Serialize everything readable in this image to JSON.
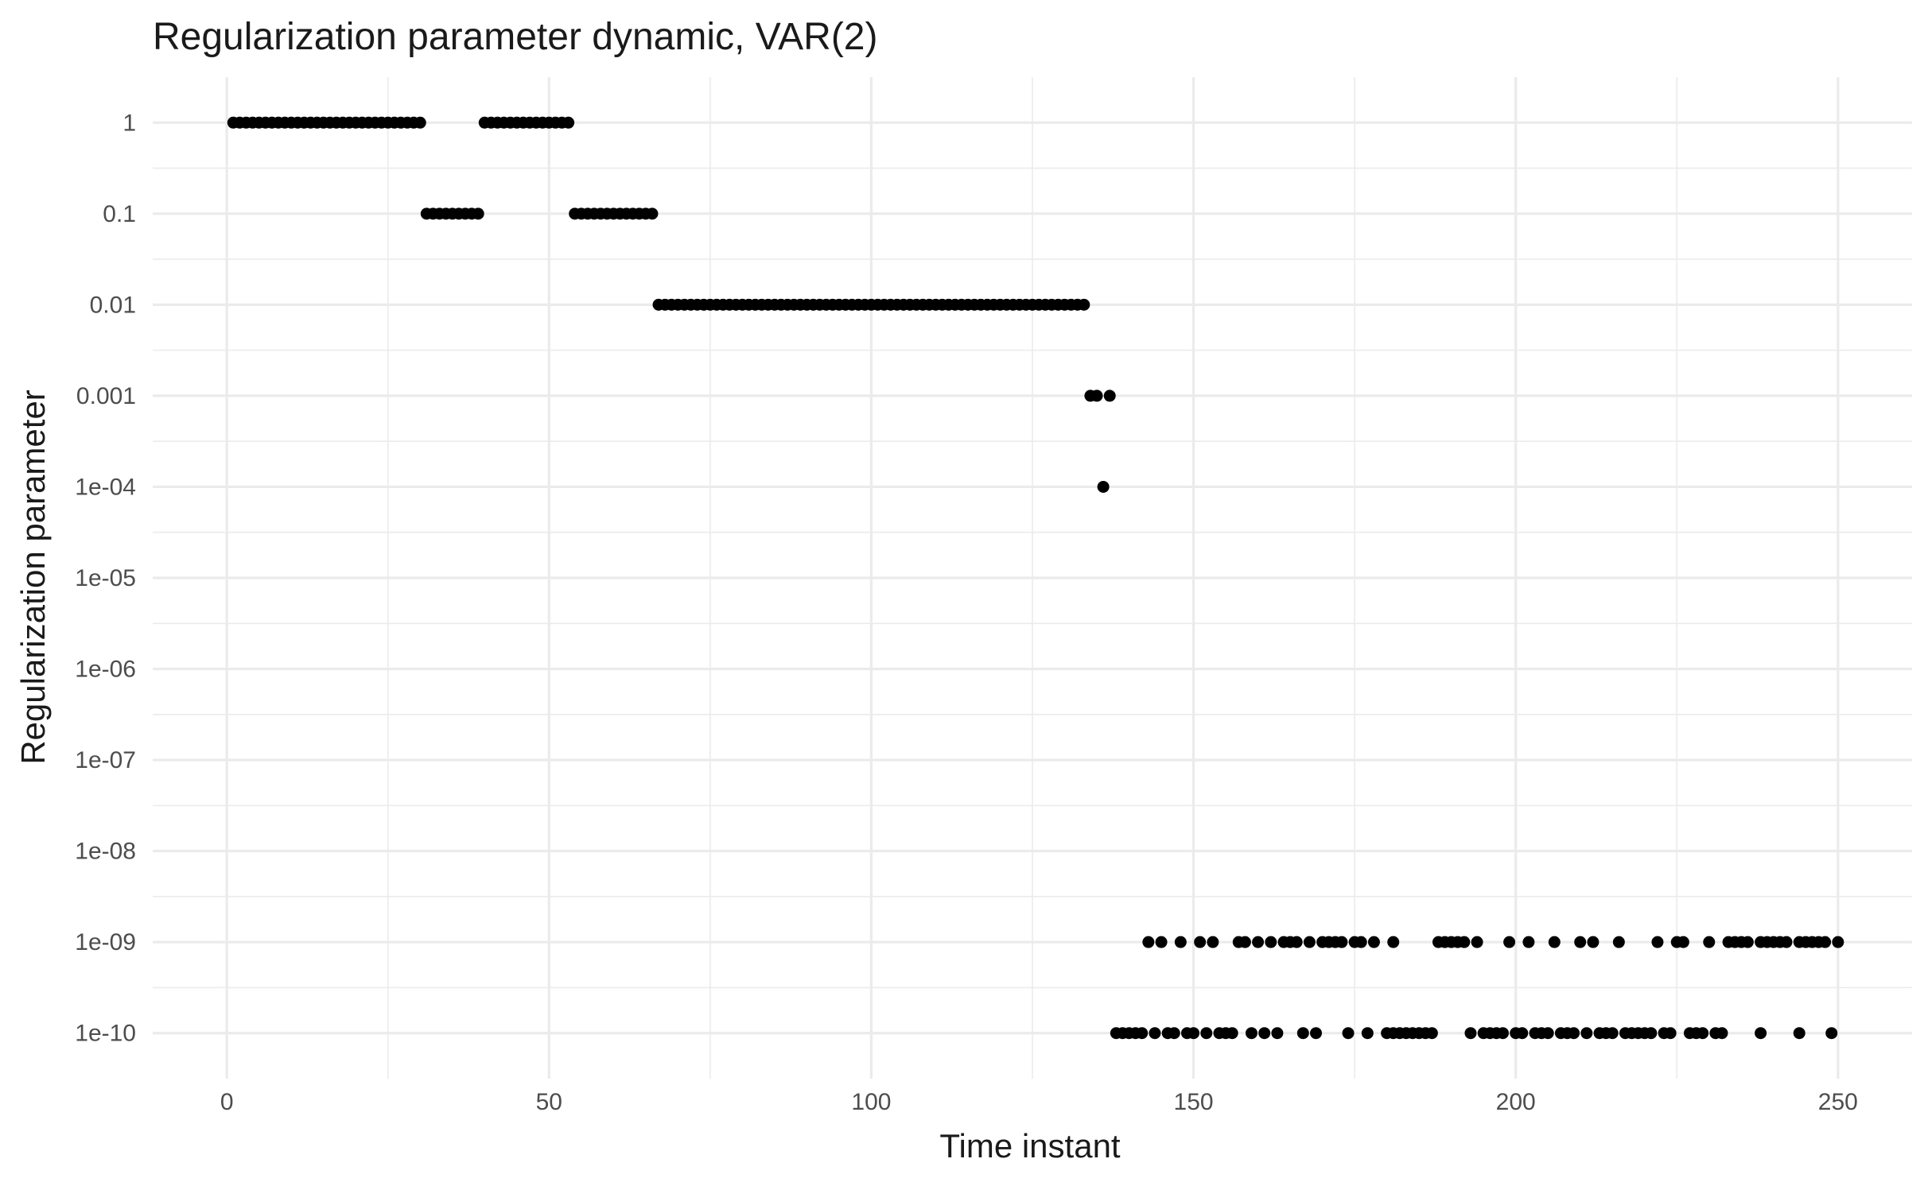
{
  "chart_data": {
    "type": "scatter",
    "title": "Regularization parameter dynamic, VAR(2)",
    "xlabel": "Time instant",
    "ylabel": "Regularization parameter",
    "xlim": [
      -11.5,
      261.5
    ],
    "ylim_log10": [
      -10.5,
      0.5
    ],
    "y_scale": "log10",
    "x_ticks": [
      0,
      50,
      100,
      150,
      200,
      250
    ],
    "x_tick_labels": [
      "0",
      "50",
      "100",
      "150",
      "200",
      "250"
    ],
    "y_ticks_log10": [
      0,
      -1,
      -2,
      -3,
      -4,
      -5,
      -6,
      -7,
      -8,
      -9,
      -10
    ],
    "y_tick_labels": [
      "1",
      "0.1",
      "0.01",
      "0.001",
      "1e-04",
      "1e-05",
      "1e-06",
      "1e-07",
      "1e-08",
      "1e-09",
      "1e-10"
    ],
    "grid": true,
    "point_color": "#000000",
    "series": [
      {
        "runs": [
          {
            "from": 1,
            "to": 30,
            "y": 1
          },
          {
            "from": 31,
            "to": 39,
            "y": 0.1
          },
          {
            "from": 40,
            "to": 53,
            "y": 1
          },
          {
            "from": 54,
            "to": 66,
            "y": 0.1
          },
          {
            "from": 67,
            "to": 133,
            "y": 0.01
          },
          {
            "from": 134,
            "to": 135,
            "y": 0.001
          },
          {
            "from": 136,
            "to": 136,
            "y": 0.0001
          },
          {
            "from": 137,
            "to": 137,
            "y": 0.001
          }
        ],
        "points_1e_9": [
          143,
          145,
          148,
          151,
          153,
          157,
          158,
          160,
          162,
          164,
          165,
          166,
          168,
          170,
          171,
          172,
          173,
          175,
          176,
          178,
          181,
          188,
          189,
          190,
          191,
          192,
          194,
          199,
          202,
          206,
          210,
          212,
          216,
          222,
          225,
          226,
          230,
          233,
          234,
          235,
          236,
          238,
          239,
          240,
          241,
          242,
          244,
          245,
          246,
          247,
          248,
          250
        ],
        "points_1e_10": [
          138,
          139,
          140,
          141,
          142,
          144,
          146,
          147,
          149,
          150,
          152,
          154,
          155,
          156,
          159,
          161,
          163,
          167,
          169,
          174,
          177,
          180,
          181,
          182,
          183,
          184,
          185,
          186,
          187,
          193,
          195,
          196,
          197,
          198,
          200,
          201,
          203,
          204,
          205,
          207,
          208,
          209,
          211,
          213,
          214,
          215,
          217,
          218,
          219,
          220,
          221,
          223,
          224,
          227,
          228,
          229,
          231,
          232,
          238,
          244,
          249
        ]
      }
    ]
  }
}
